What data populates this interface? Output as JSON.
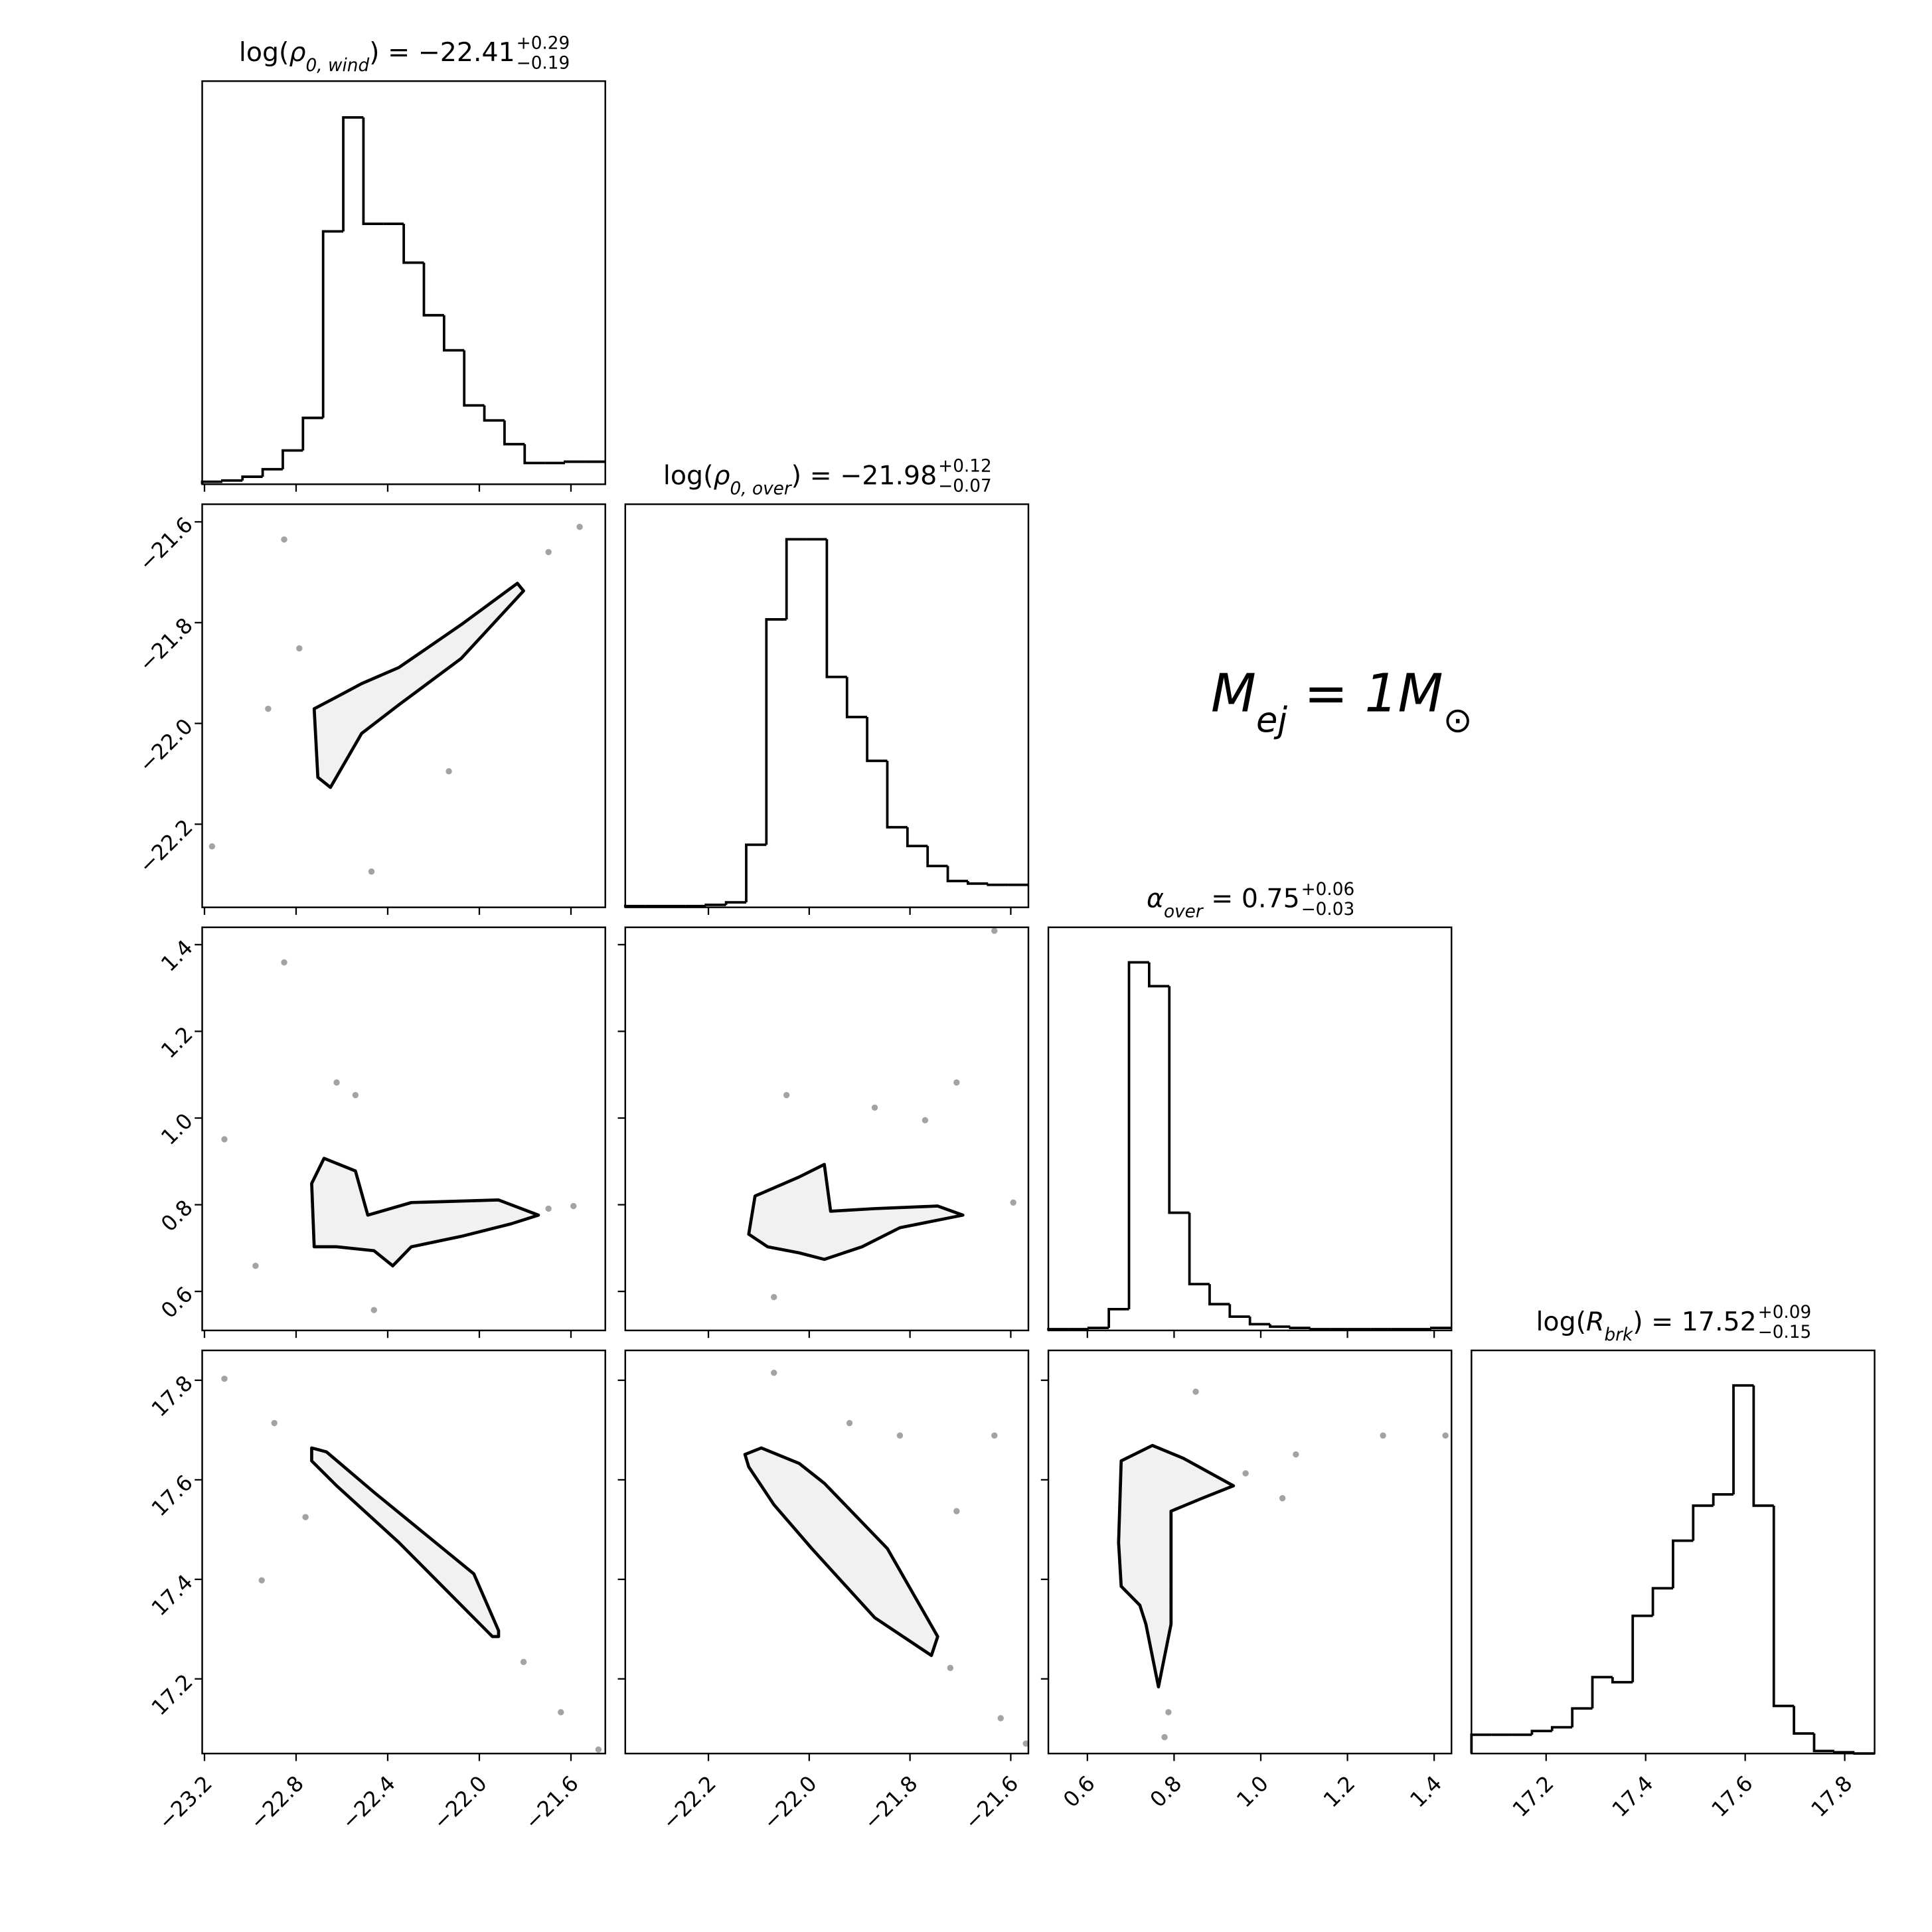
{
  "chart_data": {
    "type": "corner",
    "color": "#000000",
    "point_color": "#333333",
    "fill_color": "#eeeeee",
    "hist_ylim": [
      0,
      322
    ],
    "params": [
      {
        "lim": [
          -23.21,
          -21.45
        ],
        "ticks": [
          {
            "value": -23.2,
            "label": "−23.2"
          },
          {
            "value": -22.8,
            "label": "−22.8"
          },
          {
            "value": -22.4,
            "label": "−22.4"
          },
          {
            "value": -22.0,
            "label": "−22.0"
          },
          {
            "value": -21.6,
            "label": "−21.6"
          }
        ]
      },
      {
        "lim": [
          -22.365,
          -21.565
        ],
        "ticks": [
          {
            "value": -22.2,
            "label": "−22.2"
          },
          {
            "value": -22.0,
            "label": "−22.0"
          },
          {
            "value": -21.8,
            "label": "−21.8"
          },
          {
            "value": -21.6,
            "label": "−21.6"
          }
        ]
      },
      {
        "lim": [
          0.51,
          1.44
        ],
        "ticks": [
          0.6,
          0.8,
          {
            "value": 1.0,
            "label": "1.0"
          },
          1.2,
          1.4
        ]
      },
      {
        "lim": [
          17.05,
          17.86
        ],
        "ticks": [
          17.2,
          17.4,
          17.6,
          17.8
        ]
      }
    ],
    "histograms": [
      {
        "title": {
          "prefix": "log(",
          "symbol": "ρ",
          "subscript": "0, wind",
          "suffix": ") = −22.41",
          "upper": "+0.29",
          "lower": "−0.19"
        },
        "bins": [
          -23.21,
          -23.122,
          -23.034,
          -22.946,
          -22.858,
          -22.77,
          -22.682,
          -22.594,
          -22.506,
          -22.418,
          -22.33,
          -22.242,
          -22.154,
          -22.066,
          -21.978,
          -21.89,
          -21.802,
          -21.714,
          -21.626,
          -21.538,
          -21.45
        ],
        "values": [
          2,
          3,
          6,
          12,
          27,
          53,
          202,
          293,
          208,
          208,
          177,
          135,
          107,
          63,
          51,
          32,
          17,
          17,
          18,
          18
        ]
      },
      {
        "title": {
          "prefix": "log(",
          "symbol": "ρ",
          "subscript": "0, over",
          "suffix": ") = −21.98",
          "upper": "+0.12",
          "lower": "−0.07"
        },
        "bins": [
          -22.365,
          -22.325,
          -22.285,
          -22.245,
          -22.205,
          -22.165,
          -22.125,
          -22.085,
          -22.045,
          -22.005,
          -21.965,
          -21.925,
          -21.885,
          -21.845,
          -21.805,
          -21.765,
          -21.725,
          -21.685,
          -21.645,
          -21.605,
          -21.565
        ],
        "values": [
          1,
          1,
          1,
          1,
          2,
          4,
          50,
          230,
          294,
          294,
          184,
          152,
          117,
          64,
          49,
          33,
          21,
          19,
          18,
          18
        ]
      },
      {
        "title": {
          "prefix": "",
          "symbol": "α",
          "subscript": "over",
          "suffix": " = 0.75",
          "upper": "+0.06",
          "lower": "−0.03"
        },
        "bins": [
          0.51,
          0.5565,
          0.603,
          0.6495,
          0.696,
          0.7425,
          0.789,
          0.8355,
          0.882,
          0.9285,
          0.975,
          1.0215,
          1.068,
          1.1145,
          1.161,
          1.2075,
          1.254,
          1.3005,
          1.347,
          1.3935,
          1.44
        ],
        "values": [
          1,
          1,
          2,
          17,
          294,
          275,
          94,
          37,
          21,
          11,
          5,
          3,
          2,
          1,
          1,
          1,
          1,
          1,
          1,
          2
        ]
      },
      {
        "title": {
          "prefix": "log(",
          "symbol": "R",
          "subscript": "brk",
          "suffix": ") = 17.52",
          "upper": "+0.09",
          "lower": "−0.15"
        },
        "bins": [
          17.05,
          17.0905,
          17.131,
          17.1715,
          17.212,
          17.2525,
          17.293,
          17.3335,
          17.374,
          17.4145,
          17.455,
          17.4955,
          17.536,
          17.5765,
          17.617,
          17.6575,
          17.698,
          17.7385,
          17.779,
          17.8195,
          17.86
        ],
        "values": [
          15,
          15,
          15,
          18,
          21,
          36,
          61,
          57,
          110,
          132,
          170,
          198,
          207,
          294,
          198,
          38,
          16,
          2,
          1,
          0
        ]
      }
    ],
    "panels": [
      {
        "contour": {
          "x": [
            -22.721,
            -22.596,
            -22.514,
            -22.351,
            -22.079,
            -21.834,
            -21.807,
            -22.079,
            -22.351,
            -22.514,
            -22.65,
            -22.705
          ],
          "y": [
            -21.971,
            -21.941,
            -21.921,
            -21.889,
            -21.804,
            -21.722,
            -21.737,
            -21.871,
            -21.963,
            -22.02,
            -22.127,
            -22.107
          ]
        },
        "points": {
          "x": [
            -22.852,
            -22.786,
            -22.922,
            -22.133,
            -23.167,
            -22.471,
            -21.698,
            -21.562
          ],
          "y": [
            -21.635,
            -21.851,
            -21.971,
            -22.095,
            -22.244,
            -22.294,
            -21.66,
            -21.61
          ]
        }
      },
      {
        "contour": {
          "x": [
            -22.721,
            -22.732,
            -22.678,
            -22.541,
            -22.487,
            -22.297,
            -21.916,
            -21.742,
            -21.861,
            -22.079,
            -22.297,
            -22.378,
            -22.46,
            -22.623
          ],
          "y": [
            0.703,
            0.849,
            0.907,
            0.878,
            0.776,
            0.805,
            0.811,
            0.776,
            0.756,
            0.727,
            0.703,
            0.659,
            0.694,
            0.703
          ]
        },
        "points": {
          "x": [
            -22.852,
            -22.623,
            -22.541,
            -23.113,
            -22.977,
            -21.589,
            -21.698,
            -22.46
          ],
          "y": [
            1.359,
            1.082,
            1.053,
            0.951,
            0.659,
            0.797,
            0.791,
            0.557
          ]
        }
      },
      {
        "contour": {
          "x": [
            -22.12,
            -22.1075,
            -22.02,
            -21.97,
            -21.9575,
            -21.87,
            -21.745,
            -21.695,
            -21.82,
            -21.895,
            -21.97,
            -22.02,
            -22.0825
          ],
          "y": [
            0.732,
            0.82,
            0.864,
            0.893,
            0.785,
            0.791,
            0.797,
            0.776,
            0.747,
            0.703,
            0.674,
            0.689,
            0.703
          ]
        },
        "points": {
          "x": [
            -21.7075,
            -21.77,
            -21.87,
            -22.045,
            -21.6325,
            -21.595,
            -22.07
          ],
          "y": [
            1.082,
            0.995,
            1.024,
            1.053,
            1.432,
            0.805,
            0.587
          ]
        }
      },
      {
        "contour": {
          "x": [
            -22.732,
            -22.667,
            -22.46,
            -22.024,
            -21.916,
            -21.916,
            -21.943,
            -22.161,
            -22.351,
            -22.623,
            -22.732
          ],
          "y": [
            17.664,
            17.656,
            17.575,
            17.411,
            17.297,
            17.285,
            17.285,
            17.386,
            17.474,
            17.588,
            17.638
          ]
        },
        "points": {
          "x": [
            -23.113,
            -22.895,
            -22.759,
            -22.95,
            -21.807,
            -21.644,
            -21.48
          ],
          "y": [
            17.803,
            17.714,
            17.525,
            17.398,
            17.234,
            17.133,
            17.058
          ]
        }
      },
      {
        "contour": {
          "x": [
            -22.1275,
            -22.095,
            -22.02,
            -21.97,
            -21.845,
            -21.745,
            -21.7575,
            -21.87,
            -21.995,
            -22.07,
            -22.12
          ],
          "y": [
            17.651,
            17.664,
            17.633,
            17.593,
            17.462,
            17.285,
            17.247,
            17.323,
            17.462,
            17.55,
            17.626
          ]
        },
        "points": {
          "x": [
            -22.07,
            -21.92,
            -21.82,
            -21.7075,
            -21.6325,
            -21.72,
            -21.62,
            -21.57
          ],
          "y": [
            17.815,
            17.714,
            17.689,
            17.537,
            17.689,
            17.222,
            17.121,
            17.07
          ]
        }
      },
      {
        "contour": {
          "x": [
            0.672,
            0.678,
            0.75,
            0.822,
            0.937,
            0.865,
            0.793,
            0.793,
            0.764,
            0.735,
            0.721,
            0.678
          ],
          "y": [
            17.474,
            17.638,
            17.669,
            17.643,
            17.588,
            17.563,
            17.537,
            17.31,
            17.184,
            17.31,
            17.348,
            17.386
          ]
        },
        "points": {
          "x": [
            0.85,
            1.081,
            0.965,
            1.05,
            1.426,
            1.282,
            0.778,
            0.787
          ],
          "y": [
            17.777,
            17.651,
            17.613,
            17.563,
            17.689,
            17.689,
            17.083,
            17.133
          ]
        }
      }
    ],
    "annotation": {
      "text1": "M",
      "sub1": "ej",
      "text2": " = 1M",
      "sub2": "⊙"
    }
  }
}
